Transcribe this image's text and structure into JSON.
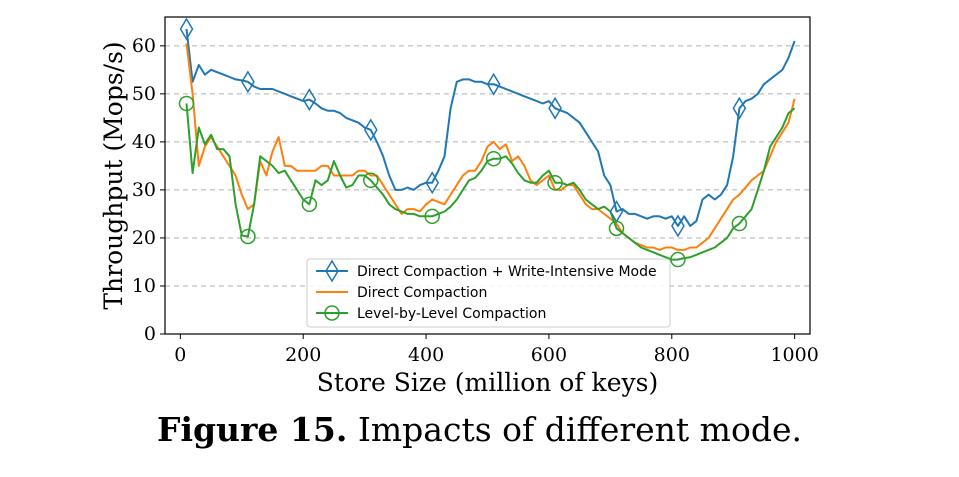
{
  "chart_data": {
    "type": "line",
    "xlabel": "Store Size (million of keys)",
    "ylabel": "Throughput (Mops/s)",
    "xlim": [
      -25,
      1025
    ],
    "ylim": [
      0,
      66
    ],
    "xticks": [
      0,
      200,
      400,
      600,
      800,
      1000
    ],
    "yticks": [
      0,
      10,
      20,
      30,
      40,
      50,
      60
    ],
    "grid": "horizontal dashed",
    "legend_position": "bottom-center",
    "series": [
      {
        "name": "Direct Compaction + Write-Intensive Mode",
        "color": "#1f77b4",
        "marker": "thin_diamond",
        "x": [
          10,
          20,
          30,
          40,
          50,
          60,
          70,
          80,
          90,
          100,
          110,
          120,
          130,
          140,
          150,
          160,
          170,
          180,
          190,
          200,
          210,
          220,
          230,
          240,
          250,
          260,
          270,
          280,
          290,
          300,
          310,
          320,
          330,
          340,
          350,
          360,
          370,
          380,
          390,
          400,
          410,
          420,
          430,
          440,
          450,
          460,
          470,
          480,
          490,
          500,
          510,
          520,
          530,
          540,
          550,
          560,
          570,
          580,
          590,
          600,
          610,
          620,
          630,
          640,
          650,
          660,
          670,
          680,
          690,
          700,
          710,
          720,
          730,
          740,
          750,
          760,
          770,
          780,
          790,
          800,
          810,
          820,
          830,
          840,
          850,
          860,
          870,
          880,
          890,
          900,
          910,
          920,
          930,
          940,
          950,
          960,
          970,
          980,
          990,
          1000
        ],
        "values": [
          63.5,
          52.5,
          56,
          54,
          55,
          54.5,
          54,
          53.5,
          53,
          52.8,
          52.5,
          51.5,
          51,
          51,
          51,
          50.5,
          50,
          49.5,
          49,
          48.5,
          48.8,
          48,
          47,
          46.5,
          46.5,
          46,
          45,
          44.5,
          44,
          43,
          42.5,
          40,
          37,
          33,
          30,
          30,
          30.5,
          30,
          31,
          31.5,
          31.5,
          34,
          37,
          47,
          52.5,
          53,
          53,
          52.5,
          52.5,
          52,
          52,
          51.5,
          51,
          50.5,
          50,
          49.5,
          49,
          48.5,
          48,
          48.5,
          47,
          46.5,
          46,
          45,
          44,
          42,
          40,
          38,
          33,
          31,
          25.5,
          26,
          25,
          25,
          24.5,
          24,
          24.5,
          24.5,
          24,
          24.5,
          22.5,
          24.5,
          22.5,
          23.5,
          28,
          29,
          28,
          29,
          31,
          37,
          47,
          48.5,
          49,
          50,
          52,
          53,
          54,
          55,
          57.5,
          61
        ],
        "marker_indices": [
          0,
          10,
          20,
          30,
          40,
          50,
          60,
          70,
          80,
          90
        ]
      },
      {
        "name": "Direct Compaction",
        "color": "#ff7f0e",
        "marker": "none",
        "x": [
          10,
          20,
          30,
          40,
          50,
          60,
          70,
          80,
          90,
          100,
          110,
          120,
          130,
          140,
          150,
          160,
          170,
          180,
          190,
          200,
          210,
          220,
          230,
          240,
          250,
          260,
          270,
          280,
          290,
          300,
          310,
          320,
          330,
          340,
          350,
          360,
          370,
          380,
          390,
          400,
          410,
          420,
          430,
          440,
          450,
          460,
          470,
          480,
          490,
          500,
          510,
          520,
          530,
          540,
          550,
          560,
          570,
          580,
          590,
          600,
          610,
          620,
          630,
          640,
          650,
          660,
          670,
          680,
          690,
          700,
          710,
          720,
          730,
          740,
          750,
          760,
          770,
          780,
          790,
          800,
          810,
          820,
          830,
          840,
          850,
          860,
          870,
          880,
          890,
          900,
          910,
          920,
          930,
          940,
          950,
          960,
          970,
          980,
          990,
          1000
        ],
        "values": [
          60.5,
          50,
          35,
          39,
          41,
          39,
          37,
          35,
          33,
          29,
          26,
          27,
          36,
          33,
          38,
          41,
          35,
          35,
          34,
          34,
          34,
          34,
          35,
          35,
          33,
          33,
          33,
          33,
          34,
          34,
          33,
          33,
          31,
          29,
          27,
          25,
          26,
          26,
          25.5,
          27,
          28,
          27.5,
          27,
          29,
          31,
          33,
          34,
          34,
          36,
          39,
          40,
          38.5,
          39.5,
          36,
          37,
          35,
          32,
          31,
          32,
          33,
          30,
          30,
          31,
          31,
          29,
          27,
          26,
          26,
          25,
          24,
          23,
          21,
          20,
          19,
          18.5,
          18,
          18,
          17.5,
          18,
          18,
          17.5,
          17.5,
          18,
          18,
          19,
          20,
          22,
          24,
          26,
          28,
          29,
          30.5,
          32,
          33,
          34,
          37,
          40,
          42,
          44,
          49
        ]
      },
      {
        "name": "Level-by-Level Compaction",
        "color": "#2ca02c",
        "marker": "circle",
        "x": [
          10,
          20,
          30,
          40,
          50,
          60,
          70,
          80,
          90,
          100,
          110,
          120,
          130,
          140,
          150,
          160,
          170,
          180,
          190,
          200,
          210,
          220,
          230,
          240,
          250,
          260,
          270,
          280,
          290,
          300,
          310,
          320,
          330,
          340,
          350,
          360,
          370,
          380,
          390,
          400,
          410,
          420,
          430,
          440,
          450,
          460,
          470,
          480,
          490,
          500,
          510,
          520,
          530,
          540,
          550,
          560,
          570,
          580,
          590,
          600,
          610,
          620,
          630,
          640,
          650,
          660,
          670,
          680,
          690,
          700,
          710,
          720,
          730,
          740,
          750,
          760,
          770,
          780,
          790,
          800,
          810,
          820,
          830,
          840,
          850,
          860,
          870,
          880,
          890,
          900,
          910,
          920,
          930,
          940,
          950,
          960,
          970,
          980,
          990,
          1000
        ],
        "values": [
          48,
          33.5,
          43,
          39.5,
          41.5,
          38.5,
          38.5,
          37,
          27,
          20.5,
          20.3,
          27,
          37,
          36,
          35,
          33.5,
          34,
          32,
          30,
          28,
          27,
          32,
          31,
          32,
          36,
          33,
          30.5,
          31,
          33,
          33,
          32,
          30.5,
          29,
          27,
          26,
          25.5,
          25,
          25,
          24.5,
          24.5,
          24.5,
          25,
          25.5,
          26.5,
          28,
          30,
          32,
          32.5,
          34,
          36,
          36.5,
          36.5,
          37,
          35.5,
          33.5,
          32,
          31.5,
          31.5,
          33,
          34,
          31.5,
          31.5,
          31,
          31.5,
          30,
          28,
          27,
          26,
          26.5,
          25.5,
          22,
          21,
          20,
          19,
          18,
          17.5,
          17,
          16.5,
          16,
          15.5,
          15.5,
          15.8,
          16,
          16.5,
          17,
          17.5,
          18,
          19,
          20,
          22,
          23,
          24.5,
          26,
          30,
          34,
          39,
          41,
          43,
          46,
          47
        ],
        "marker_indices": [
          0,
          10,
          20,
          30,
          40,
          50,
          60,
          70,
          80,
          90
        ]
      }
    ]
  },
  "caption": {
    "label": "Figure 15.",
    "text": " Impacts of different mode."
  }
}
